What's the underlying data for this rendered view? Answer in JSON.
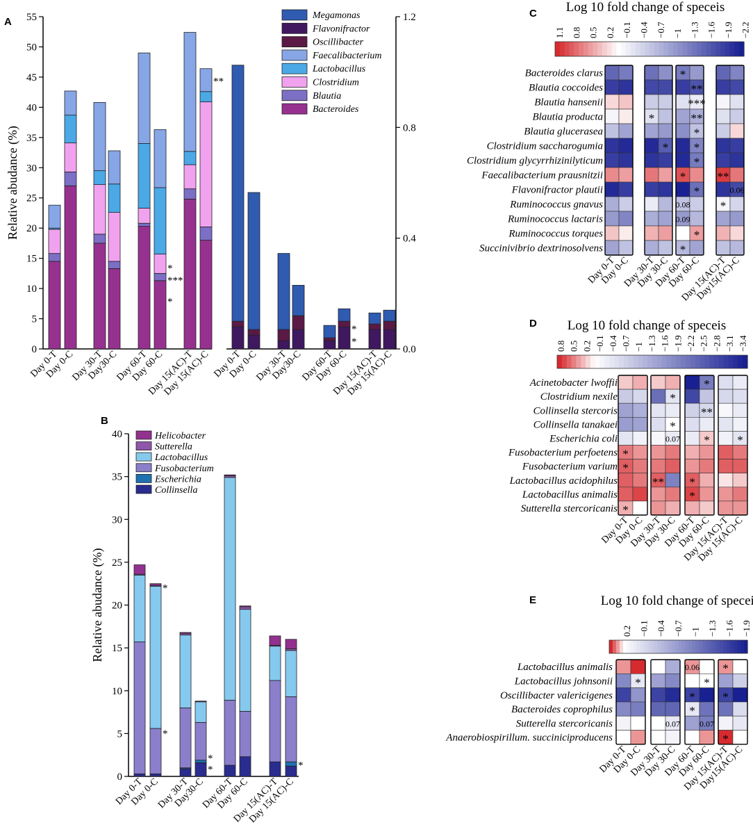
{
  "chart_data": [
    {
      "panel": "A",
      "type": "bar",
      "subtype": "stacked",
      "ylabel": "Relative abudance (%)",
      "ylim": [
        0,
        55
      ],
      "yticks": [
        0,
        5,
        10,
        15,
        20,
        25,
        30,
        35,
        40,
        45,
        50,
        55
      ],
      "right_ylim": [
        0,
        1.2
      ],
      "right_yticks": [
        "0.0",
        "0.4",
        "0.8",
        "1.2"
      ],
      "categories": [
        "Day 0-T",
        "Day 0-C",
        "Day 30-T",
        "Day30-C",
        "Day 60-T",
        "Day 60-C",
        "Day 15(AC)-T",
        "Day 15(AC)-C"
      ],
      "legend": [
        "Megamonas",
        "Flavonifractor",
        "Oscillibacter",
        "Faecalibacterium",
        "Lactobacillus",
        "Clostridium",
        "Blautia",
        "Bacteroides"
      ],
      "left_series": [
        {
          "name": "Bacteroides",
          "color": "#97318f",
          "values": [
            14.5,
            27.0,
            17.5,
            13.3,
            20.3,
            11.3,
            24.8,
            18.0
          ]
        },
        {
          "name": "Blautia",
          "color": "#7c6fc6",
          "values": [
            1.3,
            2.3,
            1.5,
            1.2,
            0.5,
            1.2,
            1.7,
            2.2
          ]
        },
        {
          "name": "Clostridium",
          "color": "#f0a2ef",
          "values": [
            4.0,
            4.8,
            8.2,
            8.1,
            2.5,
            3.2,
            4.0,
            20.7
          ]
        },
        {
          "name": "Lactobacillus",
          "color": "#4ba9e6",
          "values": [
            0.2,
            4.6,
            2.3,
            4.7,
            10.7,
            11.0,
            2.2,
            1.7
          ]
        },
        {
          "name": "Faecalibacterium",
          "color": "#86a6e6",
          "values": [
            3.8,
            4.0,
            11.3,
            5.5,
            15.0,
            9.6,
            19.7,
            3.8
          ]
        }
      ],
      "right_series": [
        {
          "name": "Flavonifractor",
          "color": "#3f185f",
          "values": [
            0.08,
            0.05,
            0.03,
            0.07,
            0.03,
            0.08,
            0.07,
            0.07
          ]
        },
        {
          "name": "Oscillibacter",
          "color": "#5a1a45",
          "values": [
            0.02,
            0.02,
            0.04,
            0.05,
            0.01,
            0.02,
            0.02,
            0.03
          ]
        },
        {
          "name": "Megamonas",
          "color": "#2f5bb1",
          "values": [
            0.925,
            0.495,
            0.275,
            0.11,
            0.045,
            0.045,
            0.04,
            0.04
          ]
        }
      ],
      "annotations": [
        {
          "cat": 5,
          "value": 13.5,
          "text": "*"
        },
        {
          "cat": 5,
          "value": 11.5,
          "text": "***"
        },
        {
          "cat": 5,
          "value": 8.0,
          "text": "*"
        },
        {
          "cat": 7,
          "value": 44.5,
          "text": "**"
        },
        {
          "cat": 5,
          "value": 0.075,
          "axis": "right",
          "text": "*"
        },
        {
          "cat": 5,
          "value": 0.03,
          "axis": "right",
          "text": "*"
        }
      ]
    },
    {
      "panel": "B",
      "type": "bar",
      "subtype": "stacked",
      "ylabel": "Relative abudance (%)",
      "ylim": [
        0,
        40
      ],
      "yticks": [
        0,
        5,
        10,
        15,
        20,
        25,
        30,
        35,
        40
      ],
      "categories": [
        "Day 0-T",
        "Day 0-C",
        "Day 30-T",
        "Day30-C",
        "Day 60-T",
        "Day 60-C",
        "Day 15(AC)-T",
        "Day 15(AC)-C"
      ],
      "legend": [
        "Helicobacter",
        "Sutterella",
        "Lactobacillus",
        "Fusobacterium",
        "Escherichia",
        "Collinsella"
      ],
      "series": [
        {
          "name": "Collinsella",
          "color": "#2b2c8f",
          "values": [
            0.3,
            0.3,
            0.9,
            1.6,
            1.3,
            2.3,
            1.7,
            1.2
          ]
        },
        {
          "name": "Escherichia",
          "color": "#1f71b0",
          "values": [
            0.0,
            0.0,
            0.1,
            0.3,
            0.0,
            0.0,
            0.0,
            0.5
          ]
        },
        {
          "name": "Fusobacterium",
          "color": "#8b7fcb",
          "values": [
            15.4,
            5.3,
            7.0,
            4.4,
            7.6,
            5.3,
            9.5,
            7.6
          ]
        },
        {
          "name": "Lactobacillus",
          "color": "#86c9ee",
          "values": [
            7.8,
            16.6,
            8.5,
            2.4,
            26.0,
            11.9,
            4.0,
            5.4
          ]
        },
        {
          "name": "Sutterella",
          "color": "#8e57aa",
          "values": [
            0.1,
            0.1,
            0.2,
            0.1,
            0.2,
            0.3,
            0.1,
            0.2
          ]
        },
        {
          "name": "Helicobacter",
          "color": "#93318f",
          "values": [
            1.1,
            0.2,
            0.1,
            0.0,
            0.1,
            0.1,
            1.1,
            1.1
          ]
        }
      ],
      "annotations": [
        {
          "cat": 1,
          "value": 22.2,
          "text": "*"
        },
        {
          "cat": 1,
          "value": 5.2,
          "text": "*"
        },
        {
          "cat": 3,
          "value": 2.3,
          "text": "*"
        },
        {
          "cat": 3,
          "value": 1.0,
          "text": "*"
        },
        {
          "cat": 7,
          "value": 1.5,
          "text": "*"
        }
      ]
    },
    {
      "panel": "C",
      "type": "heatmap",
      "title": "Log 10 fold change  of speceis",
      "scale_ticks": [
        "1.1",
        "0.8",
        "0.5",
        "0.2",
        "−0.1",
        "−0.4",
        "−0.7",
        "−1",
        "−1.3",
        "−1.6",
        "−1.9",
        "−2.2"
      ],
      "columns": [
        "Day 0-T",
        "Day 0-C",
        "Day 30-T",
        "Day 30-C",
        "Day 60-T",
        "Day 60-C",
        "Day 15(AC)-T",
        "Day15(AC)-C"
      ],
      "rows": [
        "Bacteroides clarus",
        "Blautia coccoides",
        "Blautia hansenii",
        "Blautia producta",
        "Blautia glucerasea",
        "Clostridium saccharogumia",
        "Clostridium glycyrrhizinilyticum",
        "Faecalibacterium prausnitzii",
        "Flavonifractor plautii",
        "Ruminococcus gnavus",
        "Ruminococcus lactaris",
        "Ruminococcus torques",
        "Succinivibrio dextrinosolvens"
      ],
      "values": [
        [
          -1.5,
          -1.3,
          -1.4,
          -1.1,
          -1.3,
          -1.0,
          -1.5,
          -1.2
        ],
        [
          -1.9,
          -2.0,
          -1.8,
          -1.8,
          -1.9,
          -1.7,
          -1.9,
          -1.8
        ],
        [
          0.2,
          0.3,
          -0.5,
          -0.5,
          -0.3,
          -0.2,
          -0.1,
          -0.3
        ],
        [
          -0.1,
          0.1,
          -0.3,
          -0.6,
          -0.9,
          -0.8,
          -0.3,
          -0.5
        ],
        [
          -0.6,
          -0.9,
          -0.9,
          -1.0,
          -1.1,
          -0.6,
          -0.5,
          0.2
        ],
        [
          -2.0,
          -2.1,
          -2.1,
          -1.6,
          -2.1,
          -1.2,
          -2.0,
          -1.9
        ],
        [
          -1.9,
          -2.0,
          -2.0,
          -1.9,
          -2.1,
          -1.3,
          -1.9,
          -2.0
        ],
        [
          0.6,
          0.5,
          0.7,
          0.5,
          0.9,
          0.6,
          1.0,
          0.7
        ],
        [
          -2.1,
          -1.9,
          -1.9,
          -2.0,
          -2.2,
          -1.4,
          -2.0,
          -1.8
        ],
        [
          -0.8,
          -0.5,
          -0.2,
          -0.7,
          -0.6,
          -0.5,
          -0.1,
          -0.4
        ],
        [
          -1.0,
          -1.2,
          -0.8,
          -0.9,
          -1.0,
          -0.7,
          -0.9,
          -1.0
        ],
        [
          0.3,
          0.1,
          0.4,
          0.5,
          0.0,
          0.5,
          0.4,
          0.2
        ],
        [
          -0.9,
          -0.6,
          -0.8,
          -0.6,
          -0.7,
          -0.9,
          -0.6,
          -0.7
        ]
      ],
      "annotations": [
        {
          "row": 0,
          "col": 4,
          "text": "*"
        },
        {
          "row": 1,
          "col": 5,
          "text": "**"
        },
        {
          "row": 2,
          "col": 5,
          "text": "***"
        },
        {
          "row": 3,
          "col": 2,
          "text": "*"
        },
        {
          "row": 3,
          "col": 5,
          "text": "**"
        },
        {
          "row": 4,
          "col": 5,
          "text": "*"
        },
        {
          "row": 5,
          "col": 3,
          "text": "*"
        },
        {
          "row": 5,
          "col": 5,
          "text": "*"
        },
        {
          "row": 6,
          "col": 5,
          "text": "*"
        },
        {
          "row": 7,
          "col": 4,
          "text": "*"
        },
        {
          "row": 7,
          "col": 6,
          "text": "**"
        },
        {
          "row": 8,
          "col": 5,
          "text": "*"
        },
        {
          "row": 8,
          "col": 7,
          "text": "0.06"
        },
        {
          "row": 9,
          "col": 4,
          "text": "0.08"
        },
        {
          "row": 9,
          "col": 6,
          "text": "*"
        },
        {
          "row": 10,
          "col": 4,
          "text": "0.09"
        },
        {
          "row": 11,
          "col": 5,
          "text": "*"
        },
        {
          "row": 12,
          "col": 4,
          "text": "*"
        }
      ]
    },
    {
      "panel": "D",
      "type": "heatmap",
      "title": "Log 10 fold change  of speceis",
      "scale_ticks": [
        "0.8",
        "0.5",
        "0.2",
        "−0.1",
        "−0.4",
        "−0.7",
        "−1",
        "−1.3",
        "−1.6",
        "−1.9",
        "−2.2",
        "−2.5",
        "−2.8",
        "−3.1",
        "−3.4"
      ],
      "columns": [
        "Day 0-T",
        "Day 0-C",
        "Day 30-T",
        "Day 30-C",
        "Day 60-T",
        "Day 60-C",
        "Day 15(AC)-T",
        "Day 15(AC)-C"
      ],
      "rows": [
        "Acinetobacter lwoffii",
        "Clostridium nexile",
        "Collinsella stercoris",
        "Collinsella tanakaei",
        "Escherichia coli",
        "Fusobacterium perfoetens",
        "Fusobacterium varium",
        "Lactobacillus acidophilus",
        "Lactobacillus animalis",
        "Sutterella stercoricanis"
      ],
      "values": [
        [
          0.2,
          0.3,
          0.2,
          0.3,
          -3.4,
          -2.0,
          -0.5,
          -0.3
        ],
        [
          -0.8,
          -0.6,
          -2.2,
          -0.4,
          -2.8,
          -0.9,
          -0.6,
          -0.5
        ],
        [
          -1.4,
          -1.2,
          -0.4,
          -0.3,
          -0.7,
          -0.6,
          -0.1,
          -0.3
        ],
        [
          -1.5,
          -1.4,
          -0.5,
          0.0,
          -0.5,
          -0.3,
          -0.4,
          -0.2
        ],
        [
          -0.4,
          -0.2,
          -0.1,
          -0.3,
          -0.3,
          0.2,
          -0.2,
          -0.4
        ],
        [
          0.5,
          0.4,
          0.4,
          0.5,
          0.3,
          0.4,
          0.6,
          0.5
        ],
        [
          0.6,
          0.5,
          0.5,
          0.6,
          0.4,
          0.5,
          0.6,
          0.6
        ],
        [
          0.6,
          0.5,
          0.6,
          -1.9,
          0.6,
          0.3,
          0.1,
          0.2
        ],
        [
          0.6,
          0.7,
          0.4,
          0.5,
          0.7,
          0.4,
          0.4,
          0.5
        ],
        [
          0.3,
          0.0,
          0.4,
          0.3,
          0.3,
          0.2,
          0.4,
          0.4
        ]
      ],
      "annotations": [
        {
          "row": 0,
          "col": 5,
          "text": "*"
        },
        {
          "row": 1,
          "col": 3,
          "text": "*"
        },
        {
          "row": 2,
          "col": 5,
          "text": "**"
        },
        {
          "row": 3,
          "col": 3,
          "text": "*"
        },
        {
          "row": 4,
          "col": 3,
          "text": "0.07"
        },
        {
          "row": 4,
          "col": 5,
          "text": "*"
        },
        {
          "row": 4,
          "col": 7,
          "text": "*"
        },
        {
          "row": 5,
          "col": 0,
          "text": "*"
        },
        {
          "row": 6,
          "col": 0,
          "text": "*"
        },
        {
          "row": 7,
          "col": 2,
          "text": "**"
        },
        {
          "row": 7,
          "col": 4,
          "text": "*"
        },
        {
          "row": 8,
          "col": 4,
          "text": "*"
        },
        {
          "row": 9,
          "col": 0,
          "text": "*"
        }
      ]
    },
    {
      "panel": "E",
      "type": "heatmap",
      "title": "Log 10 fold change  of speceis",
      "scale_ticks": [
        "0.2",
        "−0.1",
        "−0.4",
        "−0.7",
        "−1",
        "−1.3",
        "−1.6",
        "−1.9"
      ],
      "columns": [
        "Day 0-T",
        "Day 0-C",
        "Day 30-T",
        "Day 30-C",
        "Day 60-T",
        "Day 60-C",
        "Day 15(AC)-T",
        "Day15(AC)-C"
      ],
      "rows": [
        "Lactobacillus animalis",
        "Lactobacillus johnsonii",
        "Oscillibacter valericigenes",
        "Bacteroides coprophilus",
        "Sutterella stercoricanis",
        "Anaerobiospirillum. succiniciproducens"
      ],
      "values": [
        [
          0.1,
          0.2,
          0.0,
          -0.7,
          0.1,
          0.0,
          0.1,
          0.0
        ],
        [
          -1.0,
          -0.2,
          -0.8,
          -1.0,
          0.0,
          0.0,
          -0.8,
          -0.4
        ],
        [
          -1.6,
          -0.9,
          -1.6,
          -1.8,
          -1.6,
          -2.0,
          -1.6,
          -2.0
        ],
        [
          -1.0,
          -1.1,
          -1.3,
          -1.3,
          -0.2,
          -1.2,
          -1.2,
          -0.3
        ],
        [
          -0.1,
          0.0,
          0.0,
          -0.2,
          -0.8,
          -1.1,
          -0.1,
          -0.2
        ],
        [
          0.0,
          0.1,
          0.0,
          -0.1,
          0.0,
          0.1,
          0.2,
          0.0
        ]
      ],
      "annotations": [
        {
          "row": 0,
          "col": 4,
          "text": "0.06"
        },
        {
          "row": 0,
          "col": 6,
          "text": "*"
        },
        {
          "row": 1,
          "col": 1,
          "text": "*"
        },
        {
          "row": 1,
          "col": 5,
          "text": "*"
        },
        {
          "row": 2,
          "col": 4,
          "text": "*"
        },
        {
          "row": 2,
          "col": 6,
          "text": "*"
        },
        {
          "row": 3,
          "col": 4,
          "text": "*"
        },
        {
          "row": 4,
          "col": 3,
          "text": "0.07"
        },
        {
          "row": 4,
          "col": 5,
          "text": "0.07"
        },
        {
          "row": 5,
          "col": 6,
          "text": "*"
        }
      ]
    }
  ]
}
